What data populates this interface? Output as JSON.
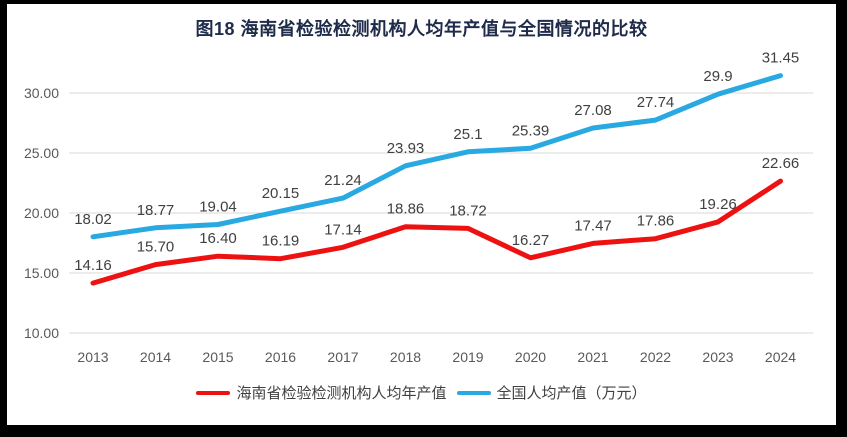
{
  "frame": {
    "background": "#000000",
    "panel_background": "#ffffff"
  },
  "chart_data": {
    "type": "line",
    "title": "图18  海南省检验检测机构人均年产值与全国情况的比较",
    "categories": [
      "2013",
      "2014",
      "2015",
      "2016",
      "2017",
      "2018",
      "2019",
      "2020",
      "2021",
      "2022",
      "2023",
      "2024"
    ],
    "series": [
      {
        "name": "海南省检验检测机构人均年产值",
        "color": "#ee1111",
        "values": [
          14.16,
          15.7,
          16.4,
          16.19,
          17.14,
          18.86,
          18.72,
          16.27,
          17.47,
          17.86,
          19.26,
          22.66
        ],
        "labels": [
          "14.16",
          "15.70",
          "16.40",
          "16.19",
          "17.14",
          "18.86",
          "18.72",
          "16.27",
          "17.47",
          "17.86",
          "19.26",
          "22.66"
        ]
      },
      {
        "name": "全国人均产值（万元）",
        "color": "#29a9e1",
        "values": [
          18.02,
          18.77,
          19.04,
          20.15,
          21.24,
          23.93,
          25.1,
          25.39,
          27.08,
          27.74,
          29.9,
          31.45
        ],
        "labels": [
          "18.02",
          "18.77",
          "19.04",
          "20.15",
          "21.24",
          "23.93",
          "25.1",
          "25.39",
          "27.08",
          "27.74",
          "29.9",
          "31.45"
        ]
      }
    ],
    "y_axis": {
      "tick_labels": [
        "30.00",
        "25.00",
        "20.00",
        "15.00",
        "10.00"
      ],
      "tick_values": [
        30,
        25,
        20,
        15,
        10
      ],
      "min": 10,
      "max": 30
    },
    "grid": true,
    "legend_position": "bottom",
    "style": {
      "grid_color": "#d9d9d9",
      "tick_text_color": "#595959",
      "data_label_color": "#404040",
      "title_color": "#1f2b4a",
      "line_width": 5
    }
  }
}
